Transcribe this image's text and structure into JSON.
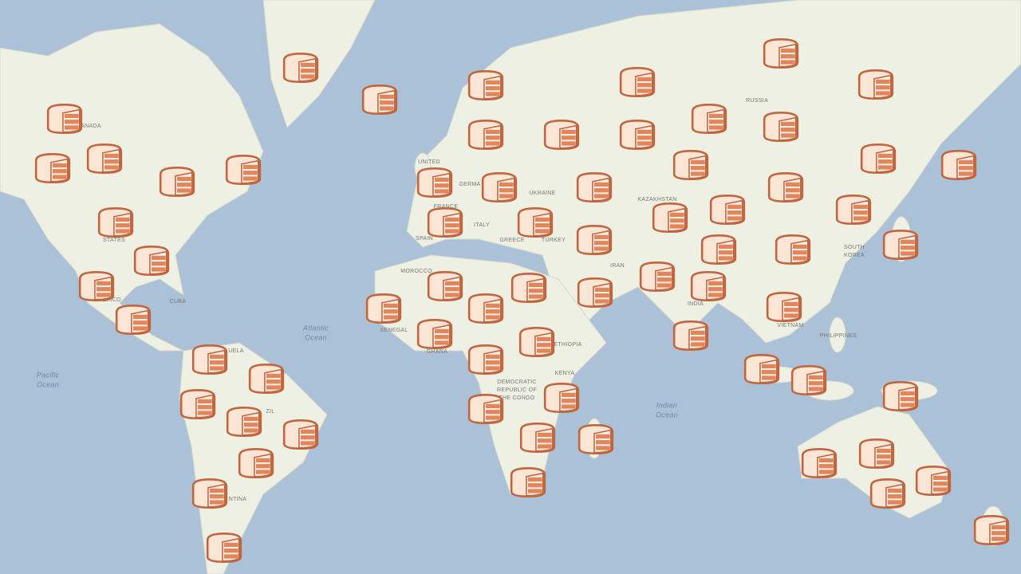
{
  "map": {
    "labels": [
      "ANADA",
      "STATES",
      "MEXICO",
      "CUBA",
      "Atlantic",
      "Ocean",
      "Pacific",
      "Ocean",
      "Indian",
      "Ocean",
      "RUSSIA",
      "KAZAKHSTAN",
      "UKRAINE",
      "TURKEY",
      "IRAN",
      "INDIA",
      "VIETNAM",
      "PHILIPPINES",
      "SOUTH",
      "KOREA",
      "SPAIN",
      "FRANCE",
      "ITALY",
      "GREECE",
      "MOROCCO",
      "SENEGAL",
      "GHANA",
      "ETHIOPIA",
      "KENYA",
      "DEMOCRATIC",
      "REPUBLIC OF",
      "THE CONGO",
      "ZIL",
      "NTINA",
      "UNITED",
      "GERMA",
      "UELA"
    ]
  }
}
